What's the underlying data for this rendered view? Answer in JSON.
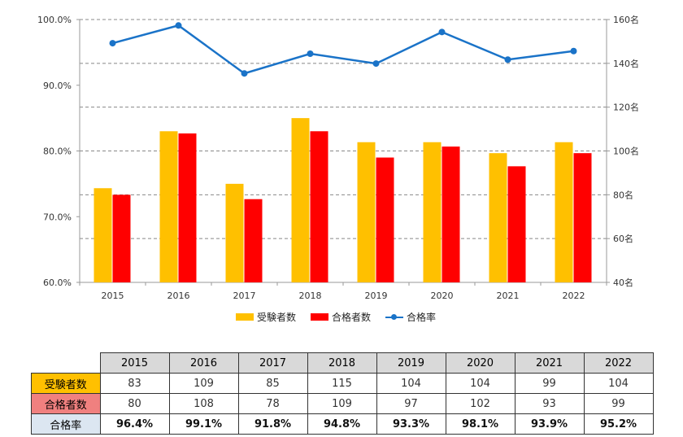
{
  "chart_data": {
    "type": "bar+line",
    "categories": [
      "2015",
      "2016",
      "2017",
      "2018",
      "2019",
      "2020",
      "2021",
      "2022"
    ],
    "series": [
      {
        "name": "受験者数",
        "type": "bar",
        "axis": "right",
        "color": "#ffc000",
        "values": [
          83,
          109,
          85,
          115,
          104,
          104,
          99,
          104
        ]
      },
      {
        "name": "合格者数",
        "type": "bar",
        "axis": "right",
        "color": "#ff0000",
        "values": [
          80,
          108,
          78,
          109,
          97,
          102,
          93,
          99
        ]
      },
      {
        "name": "合格率",
        "type": "line",
        "axis": "left",
        "color": "#1a73c8",
        "values": [
          96.4,
          99.1,
          91.8,
          94.8,
          93.3,
          98.1,
          93.9,
          95.2
        ]
      }
    ],
    "y_left": {
      "range": [
        60,
        100
      ],
      "ticks": [
        "60.0%",
        "70.0%",
        "80.0%",
        "90.0%",
        "100.0%"
      ],
      "tick_values": [
        60,
        70,
        80,
        90,
        100
      ]
    },
    "y_right": {
      "range": [
        40,
        160
      ],
      "ticks": [
        "40名",
        "60名",
        "80名",
        "100名",
        "120名",
        "140名",
        "160名"
      ],
      "tick_values": [
        40,
        60,
        80,
        100,
        120,
        140,
        160
      ]
    },
    "grid": "dashed horizontal",
    "legend_position": "bottom"
  },
  "legend": {
    "applicants": "受験者数",
    "passers": "合格者数",
    "rate": "合格率"
  },
  "table": {
    "years": [
      "2015",
      "2016",
      "2017",
      "2018",
      "2019",
      "2020",
      "2021",
      "2022"
    ],
    "rows": [
      {
        "label": "受験者数",
        "color": "#ffc000",
        "values": [
          "83",
          "109",
          "85",
          "115",
          "104",
          "104",
          "99",
          "104"
        ]
      },
      {
        "label": "合格者数",
        "color": "#f0807f",
        "values": [
          "80",
          "108",
          "78",
          "109",
          "97",
          "102",
          "93",
          "99"
        ]
      },
      {
        "label": "合格率",
        "color": "#dce6f1",
        "values": [
          "96.4%",
          "99.1%",
          "91.8%",
          "94.8%",
          "93.3%",
          "98.1%",
          "93.9%",
          "95.2%"
        ]
      }
    ]
  }
}
